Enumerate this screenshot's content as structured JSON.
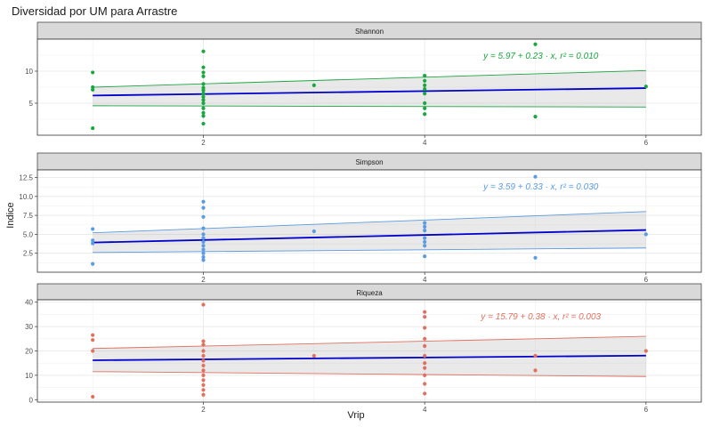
{
  "chart_data": {
    "type": "scatter",
    "title": "Diversidad por UM para Arrastre",
    "xlabel": "Vrip",
    "ylabel": "Indice",
    "xlim": [
      0.5,
      6.5
    ],
    "x_ticks": [
      2,
      4,
      6
    ],
    "grid": true,
    "trend": "linear",
    "panels": [
      {
        "name": "Shannon",
        "color": "#1aa640",
        "ylim": [
          0,
          15
        ],
        "y_ticks": [
          5,
          10
        ],
        "equation": "y = 5.97 + 0.23 · x,  r² = 0.010",
        "fit": {
          "intercept": 5.97,
          "slope": 0.23
        },
        "band": {
          "lower_at_1": 4.6,
          "upper_at_1": 7.5,
          "lower_at_6": 4.4,
          "upper_at_6": 10.1
        },
        "points": [
          [
            1,
            9.8
          ],
          [
            1,
            7.5
          ],
          [
            1,
            7.1
          ],
          [
            1,
            1.1
          ],
          [
            2,
            13.1
          ],
          [
            2,
            10.6
          ],
          [
            2,
            9.8
          ],
          [
            2,
            9.2
          ],
          [
            2,
            8.0
          ],
          [
            2,
            7.4
          ],
          [
            2,
            7.0
          ],
          [
            2,
            6.5
          ],
          [
            2,
            6.0
          ],
          [
            2,
            5.5
          ],
          [
            2,
            5.0
          ],
          [
            2,
            4.2
          ],
          [
            2,
            3.5
          ],
          [
            2,
            3.0
          ],
          [
            2,
            1.8
          ],
          [
            3,
            7.8
          ],
          [
            4,
            9.3
          ],
          [
            4,
            8.5
          ],
          [
            4,
            7.8
          ],
          [
            4,
            7.2
          ],
          [
            4,
            6.5
          ],
          [
            4,
            5.0
          ],
          [
            4,
            4.2
          ],
          [
            4,
            3.3
          ],
          [
            5,
            14.2
          ],
          [
            5,
            2.9
          ],
          [
            6,
            7.6
          ]
        ]
      },
      {
        "name": "Simpson",
        "color": "#5b9be0",
        "ylim": [
          0,
          13.5
        ],
        "y_ticks": [
          2.5,
          5.0,
          7.5,
          10.0,
          12.5
        ],
        "equation": "y = 3.59 + 0.33 · x,  r² = 0.030",
        "fit": {
          "intercept": 3.59,
          "slope": 0.33
        },
        "band": {
          "lower_at_1": 2.6,
          "upper_at_1": 5.2,
          "lower_at_6": 3.2,
          "upper_at_6": 8.0
        },
        "points": [
          [
            1,
            5.7
          ],
          [
            1,
            4.2
          ],
          [
            1,
            3.8
          ],
          [
            1,
            1.1
          ],
          [
            2,
            9.3
          ],
          [
            2,
            8.5
          ],
          [
            2,
            7.3
          ],
          [
            2,
            5.8
          ],
          [
            2,
            5.0
          ],
          [
            2,
            4.5
          ],
          [
            2,
            4.0
          ],
          [
            2,
            3.5
          ],
          [
            2,
            3.0
          ],
          [
            2,
            2.5
          ],
          [
            2,
            2.0
          ],
          [
            2,
            1.6
          ],
          [
            3,
            5.4
          ],
          [
            4,
            6.5
          ],
          [
            4,
            6.0
          ],
          [
            4,
            5.5
          ],
          [
            4,
            4.5
          ],
          [
            4,
            4.0
          ],
          [
            4,
            3.5
          ],
          [
            4,
            2.1
          ],
          [
            5,
            12.6
          ],
          [
            5,
            1.9
          ],
          [
            6,
            5.0
          ]
        ]
      },
      {
        "name": "Riqueza",
        "color": "#e0705f",
        "ylim": [
          -1,
          41
        ],
        "y_ticks": [
          0,
          10,
          20,
          30,
          40
        ],
        "equation": "y = 15.79 + 0.38 · x,  r² = 0.003",
        "fit": {
          "intercept": 15.79,
          "slope": 0.38
        },
        "band": {
          "lower_at_1": 11.5,
          "upper_at_1": 21.0,
          "lower_at_6": 9.5,
          "upper_at_6": 26.0
        },
        "points": [
          [
            1,
            26.5
          ],
          [
            1,
            24.5
          ],
          [
            1,
            20.0
          ],
          [
            1,
            1.2
          ],
          [
            2,
            39.0
          ],
          [
            2,
            24.0
          ],
          [
            2,
            22.5
          ],
          [
            2,
            20.0
          ],
          [
            2,
            18.0
          ],
          [
            2,
            16.0
          ],
          [
            2,
            14.0
          ],
          [
            2,
            12.0
          ],
          [
            2,
            10.0
          ],
          [
            2,
            8.0
          ],
          [
            2,
            6.0
          ],
          [
            2,
            4.0
          ],
          [
            2,
            2.0
          ],
          [
            3,
            18.0
          ],
          [
            4,
            36.0
          ],
          [
            4,
            34.0
          ],
          [
            4,
            29.5
          ],
          [
            4,
            25.0
          ],
          [
            4,
            22.0
          ],
          [
            4,
            18.0
          ],
          [
            4,
            15.0
          ],
          [
            4,
            13.0
          ],
          [
            4,
            10.0
          ],
          [
            4,
            6.5
          ],
          [
            4,
            2.5
          ],
          [
            5,
            18.0
          ],
          [
            5,
            12.0
          ],
          [
            6,
            20.0
          ]
        ]
      }
    ]
  }
}
